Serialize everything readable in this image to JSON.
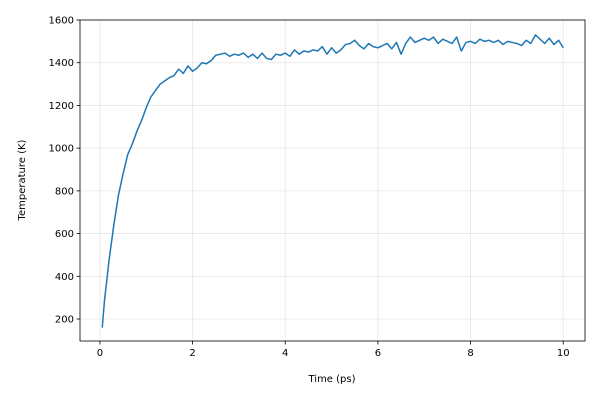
{
  "chart_data": {
    "type": "line",
    "x_label": "Time (ps)",
    "y_label": "Temperature (K)",
    "x": [
      0.05,
      0.1,
      0.2,
      0.3,
      0.4,
      0.5,
      0.6,
      0.7,
      0.8,
      0.9,
      1.0,
      1.1,
      1.2,
      1.3,
      1.4,
      1.5,
      1.6,
      1.7,
      1.8,
      1.9,
      2.0,
      2.1,
      2.2,
      2.3,
      2.4,
      2.5,
      2.6,
      2.7,
      2.8,
      2.9,
      3.0,
      3.1,
      3.2,
      3.3,
      3.4,
      3.5,
      3.6,
      3.7,
      3.8,
      3.9,
      4.0,
      4.1,
      4.2,
      4.3,
      4.4,
      4.5,
      4.6,
      4.7,
      4.8,
      4.9,
      5.0,
      5.1,
      5.2,
      5.3,
      5.4,
      5.5,
      5.6,
      5.7,
      5.8,
      5.9,
      6.0,
      6.1,
      6.2,
      6.3,
      6.4,
      6.5,
      6.6,
      6.7,
      6.8,
      6.9,
      7.0,
      7.1,
      7.2,
      7.3,
      7.4,
      7.5,
      7.6,
      7.7,
      7.8,
      7.9,
      8.0,
      8.1,
      8.2,
      8.3,
      8.4,
      8.5,
      8.6,
      8.7,
      8.8,
      8.9,
      9.0,
      9.1,
      9.2,
      9.3,
      9.4,
      9.5,
      9.6,
      9.7,
      9.8,
      9.9,
      10.0
    ],
    "series": [
      {
        "color": "#1f77b4",
        "values": [
          160,
          290,
          480,
          640,
          780,
          880,
          970,
          1020,
          1080,
          1130,
          1190,
          1240,
          1270,
          1300,
          1315,
          1330,
          1340,
          1370,
          1350,
          1385,
          1360,
          1375,
          1400,
          1395,
          1410,
          1435,
          1440,
          1445,
          1430,
          1440,
          1435,
          1445,
          1425,
          1440,
          1420,
          1445,
          1420,
          1415,
          1440,
          1435,
          1445,
          1430,
          1460,
          1440,
          1455,
          1450,
          1460,
          1455,
          1475,
          1440,
          1470,
          1445,
          1460,
          1485,
          1490,
          1505,
          1480,
          1465,
          1490,
          1475,
          1470,
          1480,
          1490,
          1465,
          1495,
          1440,
          1490,
          1520,
          1495,
          1505,
          1515,
          1505,
          1520,
          1490,
          1510,
          1500,
          1490,
          1520,
          1455,
          1495,
          1500,
          1490,
          1510,
          1500,
          1505,
          1495,
          1505,
          1485,
          1500,
          1495,
          1490,
          1480,
          1505,
          1490,
          1530,
          1510,
          1490,
          1515,
          1485,
          1505,
          1470
        ]
      }
    ],
    "xlim": [
      -0.43,
      10.47
    ],
    "ylim": [
      97,
      1600
    ],
    "xticks": [
      0,
      2,
      4,
      6,
      8,
      10
    ],
    "yticks": [
      200,
      400,
      600,
      800,
      1000,
      1200,
      1400,
      1600
    ],
    "grid": true
  }
}
